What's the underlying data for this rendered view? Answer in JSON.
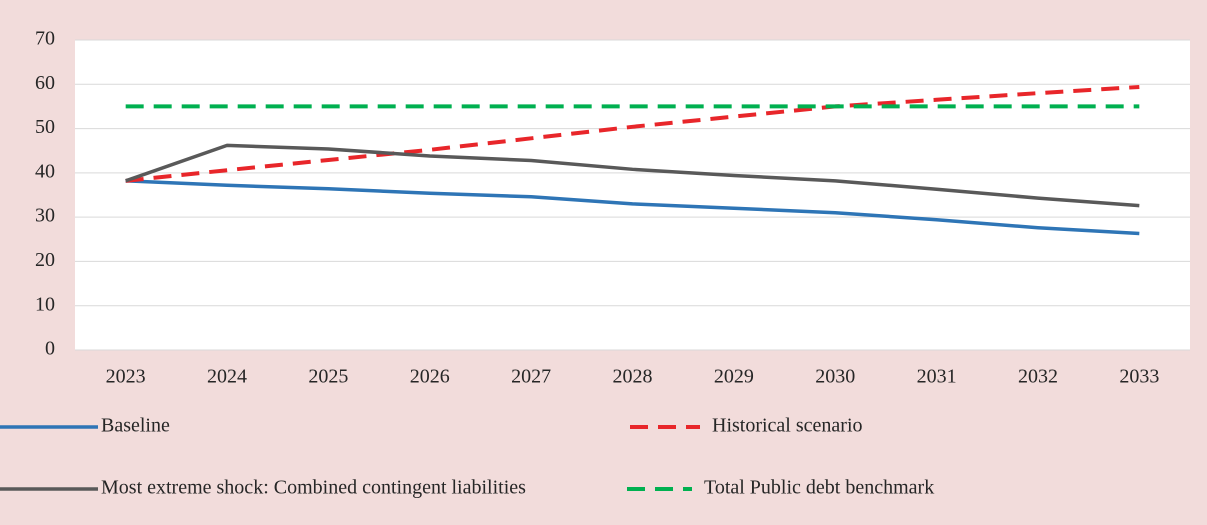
{
  "chart_data": {
    "type": "line",
    "categories": [
      "2023",
      "2024",
      "2025",
      "2026",
      "2027",
      "2028",
      "2029",
      "2030",
      "2031",
      "2032",
      "2033"
    ],
    "series": [
      {
        "name": "Baseline",
        "color": "#2e75b6",
        "dash": false,
        "values": [
          38.2,
          37.2,
          36.4,
          35.4,
          34.6,
          33.0,
          32.0,
          31.0,
          29.4,
          27.6,
          26.3
        ]
      },
      {
        "name": "Historical scenario",
        "color": "#e8262a",
        "dash": true,
        "values": [
          38.2,
          40.6,
          42.9,
          45.2,
          47.8,
          50.4,
          52.7,
          55.0,
          56.5,
          58.0,
          59.4
        ]
      },
      {
        "name": "Most extreme shock: Combined contingent liabilities",
        "color": "#595959",
        "dash": false,
        "values": [
          38.2,
          46.2,
          45.4,
          43.8,
          42.8,
          40.8,
          39.4,
          38.2,
          36.3,
          34.3,
          32.6
        ]
      },
      {
        "name": "Total Public debt benchmark",
        "color": "#00b050",
        "dash": true,
        "values": [
          55,
          55,
          55,
          55,
          55,
          55,
          55,
          55,
          55,
          55,
          55
        ]
      }
    ],
    "ylim": [
      0,
      70
    ],
    "yticks": [
      0,
      10,
      20,
      30,
      40,
      50,
      60,
      70
    ],
    "grid": true
  }
}
